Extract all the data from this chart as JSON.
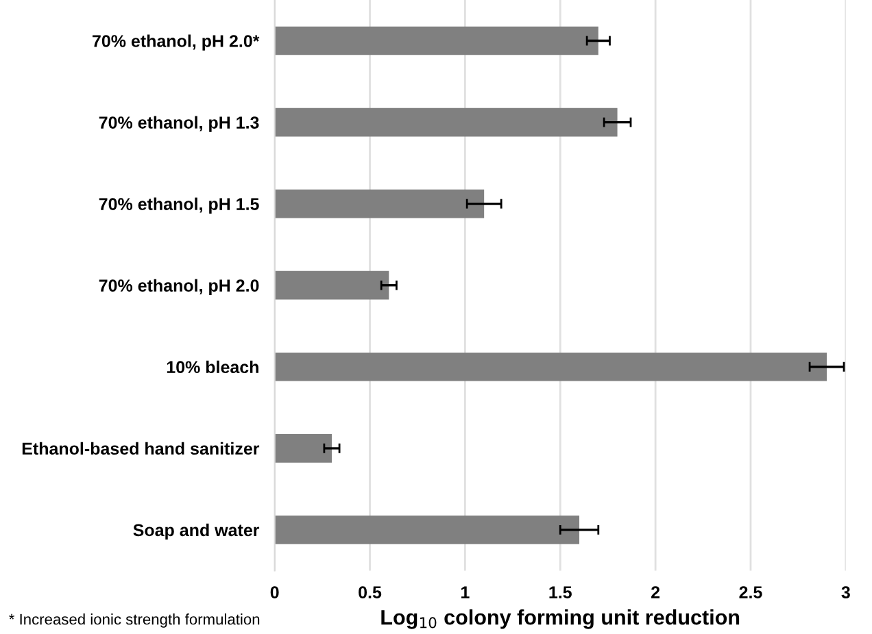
{
  "chart_data": {
    "type": "bar",
    "orientation": "horizontal",
    "categories": [
      "70% ethanol, pH 2.0*",
      "70% ethanol, pH 1.3",
      "70% ethanol, pH 1.5",
      "70% ethanol, pH 2.0",
      "10% bleach",
      "Ethanol-based hand sanitizer",
      "Soap and water"
    ],
    "values": [
      1.7,
      1.8,
      1.1,
      0.6,
      2.9,
      0.3,
      1.6
    ],
    "errors": [
      0.06,
      0.07,
      0.09,
      0.04,
      0.09,
      0.04,
      0.1
    ],
    "color": "#808080",
    "xlabel": "Log$_{10}$ colony forming unit reduction",
    "xlim": [
      0,
      3
    ],
    "xticks": [
      0,
      0.5,
      1,
      1.5,
      2,
      2.5,
      3
    ],
    "grid": "x",
    "annotations": [
      "* Increased ionic strength formulation"
    ]
  }
}
